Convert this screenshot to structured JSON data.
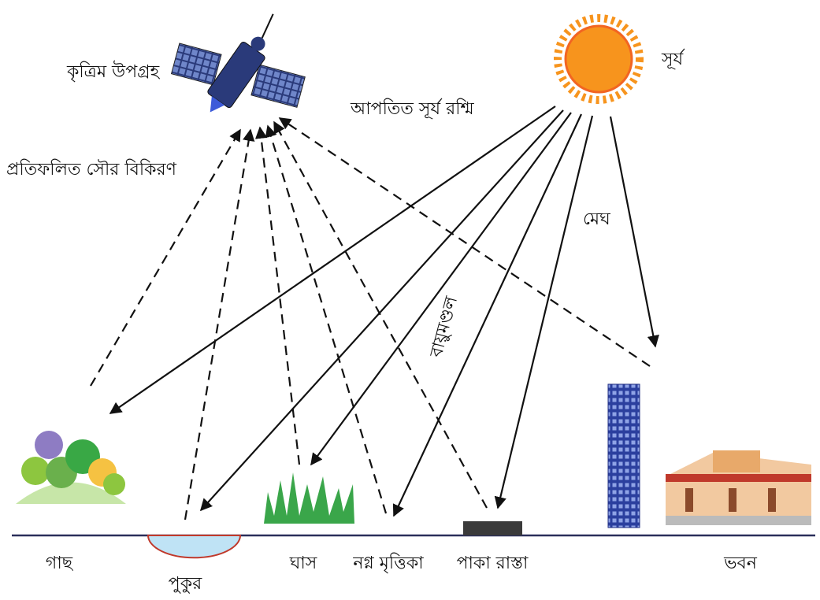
{
  "labels": {
    "satellite": "কৃত্রিম উপগ্রহ",
    "sun": "সূর্য",
    "incident": "আপতিত সূর্য রশ্মি",
    "reflected": "প্রতিফলিত সৌর বিকিরণ",
    "cloud": "মেঘ",
    "atmosphere": "বায়ুমণ্ডল"
  },
  "surfaces": [
    "গাছ",
    "পুকুর",
    "ঘাস",
    "নগ্ন মৃত্তিকা",
    "পাকা রাস্তা",
    "ভবন"
  ]
}
